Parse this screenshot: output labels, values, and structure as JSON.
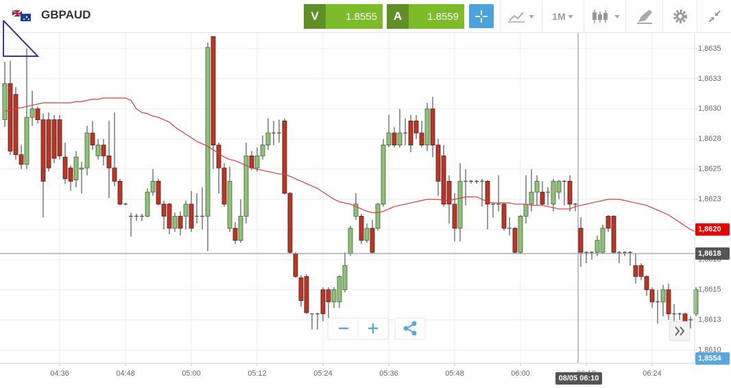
{
  "header": {
    "symbol": "GBPAUD",
    "sell": {
      "label": "V",
      "price": "1.8555"
    },
    "buy": {
      "label": "A",
      "price": "1.8559"
    },
    "timeframe": "1M"
  },
  "chart_data": {
    "type": "candlestick",
    "x": [
      "04:26",
      "04:27",
      "04:28",
      "04:29",
      "04:30",
      "04:31",
      "04:32",
      "04:33",
      "04:34",
      "04:35",
      "04:36",
      "04:37",
      "04:38",
      "04:39",
      "04:40",
      "04:41",
      "04:42",
      "04:43",
      "04:44",
      "04:45",
      "04:46",
      "04:47",
      "04:48",
      "04:49",
      "04:50",
      "04:51",
      "04:52",
      "04:53",
      "04:54",
      "04:55",
      "04:56",
      "04:57",
      "04:58",
      "04:59",
      "05:00",
      "05:01",
      "05:02",
      "05:03",
      "05:04",
      "05:05",
      "05:06",
      "05:07",
      "05:08",
      "05:09",
      "05:10",
      "05:11",
      "05:12",
      "05:13",
      "05:14",
      "05:15",
      "05:16",
      "05:17",
      "05:18",
      "05:19",
      "05:20",
      "05:21",
      "05:22",
      "05:23",
      "05:24",
      "05:25",
      "05:26",
      "05:27",
      "05:28",
      "05:29",
      "05:30",
      "05:31",
      "05:32",
      "05:33",
      "05:34",
      "05:35",
      "05:36",
      "05:37",
      "05:38",
      "05:39",
      "05:40",
      "05:41",
      "05:42",
      "05:43",
      "05:44",
      "05:45",
      "05:46",
      "05:47",
      "05:48",
      "05:49",
      "05:50",
      "05:51",
      "05:52",
      "05:53",
      "05:54",
      "05:55",
      "05:56",
      "05:57",
      "05:58",
      "05:59",
      "06:00",
      "06:01",
      "06:02",
      "06:03",
      "06:04",
      "06:05",
      "06:06",
      "06:07",
      "06:08",
      "06:09",
      "06:10",
      "06:11",
      "06:12",
      "06:13",
      "06:14",
      "06:15",
      "06:16",
      "06:17",
      "06:18",
      "06:19",
      "06:20",
      "06:21",
      "06:22",
      "06:23",
      "06:24",
      "06:25",
      "06:26",
      "06:27",
      "06:28",
      "06:29",
      "06:30",
      "06:31",
      "06:32"
    ],
    "open": [
      1.86291,
      1.86321,
      1.86312,
      1.86262,
      1.86254,
      1.86293,
      1.863,
      1.86291,
      1.86291,
      1.86291,
      1.86291,
      1.8626,
      1.86251,
      1.86241,
      1.8625,
      1.86251,
      1.8628,
      1.86261,
      1.8627,
      1.86261,
      1.86251,
      1.8624,
      1.86221,
      1.86211,
      1.86211,
      1.86211,
      1.86211,
      1.86231,
      1.8624,
      1.86221,
      1.86221,
      1.86201,
      1.86211,
      1.86211,
      1.86221,
      1.86211,
      1.86211,
      1.86211,
      1.8636,
      1.8627,
      1.86251,
      1.86201,
      1.86201,
      1.86191,
      1.86211,
      1.86261,
      1.86251,
      1.86261,
      1.8627,
      1.8628,
      1.8628,
      1.8629,
      1.8623,
      1.8618,
      1.8616,
      1.86161,
      1.8613,
      1.8613,
      1.8615,
      1.8615,
      1.8614,
      1.8614,
      1.8615,
      1.8618,
      1.86211,
      1.86211,
      1.86191,
      1.86201,
      1.86201,
      1.86221,
      1.8627,
      1.8628,
      1.8627,
      1.8628,
      1.8629,
      1.8629,
      1.8628,
      1.8627,
      1.863,
      1.8627,
      1.86261,
      1.8624,
      1.86221,
      1.86201,
      1.8624,
      1.8624,
      1.8624,
      1.8624,
      1.8624,
      1.86221,
      1.86221,
      1.86221,
      1.86201,
      1.86201,
      1.86181,
      1.86211,
      1.86221,
      1.86231,
      1.86231,
      1.86231,
      1.86221,
      1.86231,
      1.8624,
      1.8624,
      1.86221,
      1.86201,
      1.86181,
      1.86181,
      1.86181,
      1.86181,
      1.86211,
      1.86211,
      1.86181,
      1.86181,
      1.86181,
      1.8617,
      1.8617,
      1.86161,
      1.8615,
      1.8614,
      1.8614,
      1.8615,
      1.8613,
      1.8613,
      1.8613,
      1.86125,
      1.8613
    ],
    "high": [
      1.86339,
      1.8634,
      1.86318,
      1.8627,
      1.8635,
      1.86315,
      1.86302,
      1.86296,
      1.86297,
      1.86295,
      1.86295,
      1.86272,
      1.86253,
      1.86265,
      1.86256,
      1.86286,
      1.8629,
      1.86275,
      1.86275,
      1.8629,
      1.86297,
      1.86242,
      1.86222,
      1.86214,
      1.86213,
      1.86213,
      1.86234,
      1.8625,
      1.86242,
      1.86224,
      1.86222,
      1.86214,
      1.86215,
      1.86224,
      1.86232,
      1.8623,
      1.86235,
      1.86355,
      1.8636,
      1.86272,
      1.86255,
      1.86252,
      1.86206,
      1.86225,
      1.86272,
      1.86265,
      1.86268,
      1.86278,
      1.86292,
      1.8629,
      1.86291,
      1.86292,
      1.86231,
      1.86181,
      1.86162,
      1.86163,
      1.8613,
      1.86131,
      1.86152,
      1.86152,
      1.86152,
      1.86162,
      1.86181,
      1.86203,
      1.8623,
      1.86213,
      1.86205,
      1.86208,
      1.86222,
      1.86275,
      1.86295,
      1.86285,
      1.863,
      1.86292,
      1.86295,
      1.86295,
      1.8629,
      1.86305,
      1.8631,
      1.86275,
      1.8627,
      1.86245,
      1.8623,
      1.86255,
      1.8625,
      1.86241,
      1.86241,
      1.86242,
      1.86241,
      1.86222,
      1.86245,
      1.86222,
      1.8621,
      1.86202,
      1.86212,
      1.86245,
      1.8625,
      1.86245,
      1.8624,
      1.86235,
      1.86242,
      1.86241,
      1.86241,
      1.86245,
      1.86222,
      1.8621,
      1.86182,
      1.86182,
      1.86195,
      1.86204,
      1.86212,
      1.86212,
      1.86182,
      1.86182,
      1.86182,
      1.8618,
      1.86172,
      1.86162,
      1.86152,
      1.8615,
      1.86154,
      1.86155,
      1.86138,
      1.86131,
      1.86131,
      1.86128,
      1.86152
    ],
    "low": [
      1.86285,
      1.86262,
      1.86258,
      1.8625,
      1.8625,
      1.86286,
      1.86288,
      1.8621,
      1.86248,
      1.86255,
      1.86258,
      1.86238,
      1.86232,
      1.86235,
      1.8623,
      1.86245,
      1.86266,
      1.86258,
      1.86253,
      1.86226,
      1.86236,
      1.8622,
      1.8622,
      1.86194,
      1.86207,
      1.86207,
      1.8621,
      1.86228,
      1.8622,
      1.862,
      1.86196,
      1.86198,
      1.86195,
      1.862,
      1.86198,
      1.86205,
      1.862,
      1.86182,
      1.8625,
      1.8623,
      1.86219,
      1.86198,
      1.86188,
      1.86189,
      1.86205,
      1.86249,
      1.86248,
      1.86258,
      1.86266,
      1.8627,
      1.86272,
      1.86229,
      1.8618,
      1.8616,
      1.86136,
      1.8613,
      1.86117,
      1.86117,
      1.86124,
      1.86124,
      1.86135,
      1.86135,
      1.86148,
      1.86178,
      1.86208,
      1.86188,
      1.86189,
      1.8618,
      1.86199,
      1.86219,
      1.86268,
      1.86268,
      1.86268,
      1.8627,
      1.86264,
      1.86275,
      1.86268,
      1.86265,
      1.8626,
      1.86228,
      1.86219,
      1.86205,
      1.8619,
      1.8619,
      1.8622,
      1.86238,
      1.86238,
      1.86219,
      1.862,
      1.8621,
      1.86215,
      1.86199,
      1.86195,
      1.8618,
      1.8618,
      1.86205,
      1.86215,
      1.8622,
      1.8622,
      1.8622,
      1.86215,
      1.86225,
      1.8622,
      1.86215,
      1.86215,
      1.86169,
      1.86172,
      1.86175,
      1.86178,
      1.8618,
      1.86198,
      1.8618,
      1.86172,
      1.86178,
      1.8617,
      1.86155,
      1.86158,
      1.86145,
      1.86135,
      1.86122,
      1.86128,
      1.86125,
      1.8612,
      1.86125,
      1.8611,
      1.86118,
      1.86128
    ],
    "close": [
      1.86321,
      1.86265,
      1.86262,
      1.86254,
      1.86293,
      1.863,
      1.86291,
      1.8624,
      1.86251,
      1.86259,
      1.86261,
      1.86242,
      1.8624,
      1.8626,
      1.86251,
      1.8628,
      1.8627,
      1.8627,
      1.86261,
      1.86251,
      1.8624,
      1.86221,
      1.86221,
      1.86211,
      1.86211,
      1.86211,
      1.86231,
      1.8624,
      1.86221,
      1.86211,
      1.86201,
      1.86211,
      1.86201,
      1.86221,
      1.86201,
      1.86211,
      1.86211,
      1.86351,
      1.8627,
      1.86251,
      1.86221,
      1.8624,
      1.86191,
      1.86211,
      1.86261,
      1.86251,
      1.86261,
      1.8627,
      1.8628,
      1.8628,
      1.8628,
      1.8623,
      1.86181,
      1.86161,
      1.86141,
      1.86131,
      1.8613,
      1.8613,
      1.8613,
      1.8614,
      1.8615,
      1.86161,
      1.8617,
      1.86201,
      1.86221,
      1.86191,
      1.86201,
      1.86181,
      1.86221,
      1.8627,
      1.8628,
      1.8627,
      1.8628,
      1.8628,
      1.8627,
      1.8628,
      1.8627,
      1.863,
      1.8627,
      1.8624,
      1.86221,
      1.86221,
      1.86201,
      1.8624,
      1.8624,
      1.8624,
      1.8624,
      1.8624,
      1.86221,
      1.86221,
      1.86221,
      1.86201,
      1.86201,
      1.86181,
      1.86211,
      1.86221,
      1.86231,
      1.8624,
      1.86221,
      1.86231,
      1.8624,
      1.8624,
      1.8624,
      1.86221,
      1.86221,
      1.86181,
      1.86181,
      1.86181,
      1.86191,
      1.86201,
      1.86201,
      1.86181,
      1.86181,
      1.86181,
      1.86181,
      1.86161,
      1.86161,
      1.8615,
      1.8614,
      1.8614,
      1.8615,
      1.8613,
      1.8613,
      1.8613,
      1.86121,
      1.86125,
      1.8615
    ],
    "up_color": "#8fbf7b",
    "down_color": "#b5392a",
    "overlays": [
      {
        "type": "line",
        "color": "#e23a3a",
        "values": [
          1.86298,
          1.86299,
          1.863,
          1.86301,
          1.86302,
          1.86303,
          1.86304,
          1.86305,
          1.86305,
          1.86305,
          1.86305,
          1.86305,
          1.86305,
          1.86306,
          1.86306,
          1.86307,
          1.86308,
          1.86308,
          1.86309,
          1.86309,
          1.86309,
          1.86309,
          1.86309,
          1.86307,
          1.863,
          1.86297,
          1.86296,
          1.86294,
          1.86293,
          1.86291,
          1.86289,
          1.86285,
          1.86282,
          1.86279,
          1.86276,
          1.86273,
          1.86271,
          1.86269,
          1.86266,
          1.86263,
          1.8626,
          1.86258,
          1.86257,
          1.86255,
          1.86253,
          1.86251,
          1.8625,
          1.86249,
          1.86248,
          1.86247,
          1.86246,
          1.86246,
          1.86244,
          1.86242,
          1.8624,
          1.86238,
          1.86236,
          1.86234,
          1.86231,
          1.86228,
          1.86225,
          1.86223,
          1.86222,
          1.86221,
          1.86219,
          1.86217,
          1.86215,
          1.86214,
          1.86214,
          1.86215,
          1.86217,
          1.86219,
          1.8622,
          1.86221,
          1.86222,
          1.86223,
          1.86224,
          1.86225,
          1.86225,
          1.86225,
          1.86224,
          1.86224,
          1.86225,
          1.86226,
          1.86227,
          1.86227,
          1.86227,
          1.86225,
          1.86223,
          1.86222,
          1.86222,
          1.86222,
          1.86222,
          1.86221,
          1.86221,
          1.86221,
          1.8622,
          1.8622,
          1.8622,
          1.86219,
          1.86218,
          1.86217,
          1.86217,
          1.86217,
          1.86219,
          1.8622,
          1.86221,
          1.86222,
          1.86223,
          1.86224,
          1.86225,
          1.86225,
          1.86225,
          1.86224,
          1.86223,
          1.86222,
          1.86221,
          1.8622,
          1.86218,
          1.86216,
          1.86214,
          1.86212,
          1.86209,
          1.86206,
          1.86203,
          1.862,
          1.86198
        ]
      }
    ],
    "ylim": [
      1.86089,
      1.86363
    ],
    "yticks": [
      {
        "value": 1.8635,
        "label": "1,8635"
      },
      {
        "value": 1.86325,
        "label": "1,8633"
      },
      {
        "value": 1.863,
        "label": "1,8630"
      },
      {
        "value": 1.86275,
        "label": "1,8628"
      },
      {
        "value": 1.8625,
        "label": "1,8625"
      },
      {
        "value": 1.86225,
        "label": "1,8623"
      },
      {
        "value": 1.862,
        "label": "1,8620"
      },
      {
        "value": 1.86175,
        "label": "1,8618"
      },
      {
        "value": 1.8615,
        "label": "1,8615"
      },
      {
        "value": 1.86125,
        "label": "1,8613"
      },
      {
        "value": 1.861,
        "label": "1,8610"
      }
    ],
    "xticks": [
      "04:36",
      "04:48",
      "05:00",
      "05:12",
      "05:24",
      "05:36",
      "05:48",
      "06:00",
      "06:12",
      "06:24"
    ],
    "grid": true,
    "price_tags": [
      {
        "value": 1.862,
        "label": "1,8620",
        "color": "#e00000"
      },
      {
        "value": 1.8618,
        "label": "1,8618",
        "color": "#555555"
      }
    ],
    "bid_tag": {
      "label": "1,8554",
      "color": "#5aa7dc"
    },
    "crosshair": {
      "value": 1.8618,
      "time_label": "08/05 06:10"
    }
  }
}
